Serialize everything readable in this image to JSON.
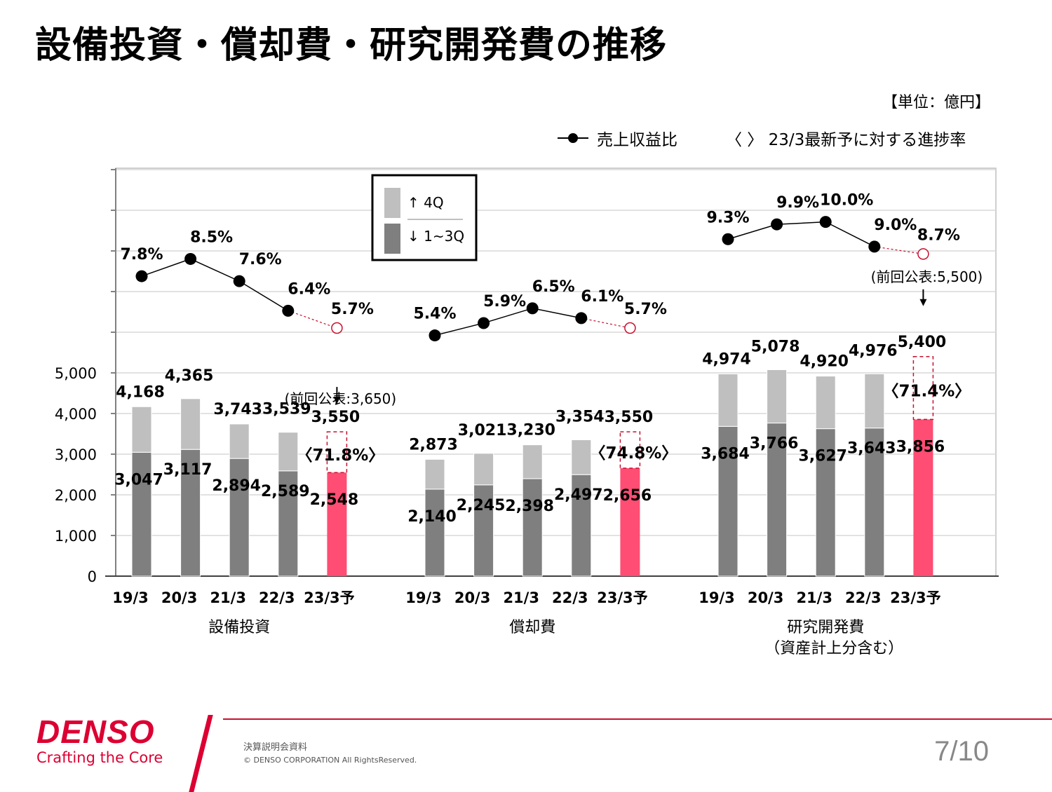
{
  "title": "設備投資・償却費・研究開発費の推移",
  "unit_label": "【単位：億円】",
  "legend": {
    "ratio_label": "売上収益比",
    "progress_label": "〈 〉 23/3最新予に対する進捗率",
    "q4_label": "↑ 4Q",
    "q13_label": "↓ 1~3Q"
  },
  "colors": {
    "q13": "#7f7f7f",
    "q4": "#bfbfbf",
    "forecast": "#ff4d73",
    "ratio_line": "#000000",
    "forecast_marker": "#c8102e",
    "brand": "#dc0032"
  },
  "chart_data": {
    "type": "bar",
    "stacked": true,
    "ylim": [
      0,
      10000
    ],
    "yticks": [
      "0",
      "1,000",
      "2,000",
      "3,000",
      "4,000",
      "5,000"
    ],
    "grid": true,
    "categories": [
      "19/3",
      "20/3",
      "21/3",
      "22/3",
      "23/3予"
    ],
    "groups": [
      {
        "name": "設備投資",
        "totals": [
          4168,
          4365,
          3743,
          3539,
          3550
        ],
        "total_labels": [
          "4,168",
          "4,365",
          "3,743",
          "3,539",
          "3,550"
        ],
        "q1_3": [
          3047,
          3117,
          2894,
          2589,
          2548
        ],
        "q1_3_labels": [
          "3,047",
          "3,117",
          "2,894",
          "2,589",
          "2,548"
        ],
        "ratio_pct": [
          7.8,
          8.5,
          7.6,
          6.4,
          5.7
        ],
        "ratio_labels": [
          "7.8%",
          "8.5%",
          "7.6%",
          "6.4%",
          "5.7%"
        ],
        "progress_label": "〈71.8%〉",
        "previous_announcement": "(前回公表:3,650)"
      },
      {
        "name": "償却費",
        "totals": [
          2873,
          3021,
          3230,
          3354,
          3550
        ],
        "total_labels": [
          "2,873",
          "3,021",
          "3,230",
          "3,354",
          "3,550"
        ],
        "q1_3": [
          2140,
          2245,
          2398,
          2497,
          2656
        ],
        "q1_3_labels": [
          "2,140",
          "2,245",
          "2,398",
          "2,497",
          "2,656"
        ],
        "ratio_pct": [
          5.4,
          5.9,
          6.5,
          6.1,
          5.7
        ],
        "ratio_labels": [
          "5.4%",
          "5.9%",
          "6.5%",
          "6.1%",
          "5.7%"
        ],
        "progress_label": "〈74.8%〉",
        "previous_announcement": ""
      },
      {
        "name": "研究開発費",
        "name_sub": "（資産計上分含む）",
        "totals": [
          4974,
          5078,
          4920,
          4976,
          5400
        ],
        "total_labels": [
          "4,974",
          "5,078",
          "4,920",
          "4,976",
          "5,400"
        ],
        "q1_3": [
          3684,
          3766,
          3627,
          3643,
          3856
        ],
        "q1_3_labels": [
          "3,684",
          "3,766",
          "3,627",
          "3,643",
          "3,856"
        ],
        "ratio_pct": [
          9.3,
          9.9,
          10.0,
          9.0,
          8.7
        ],
        "ratio_labels": [
          "9.3%",
          "9.9%",
          "10.0%",
          "9.0%",
          "8.7%"
        ],
        "progress_label": "〈71.4%〉",
        "previous_announcement": "(前回公表:5,500)"
      }
    ]
  },
  "footer": {
    "brand": "DENSO",
    "tagline": "Crafting the Core",
    "document": "決算説明会資料",
    "copyright": "© DENSO CORPORATION All RightsReserved.",
    "page": "7/10"
  }
}
